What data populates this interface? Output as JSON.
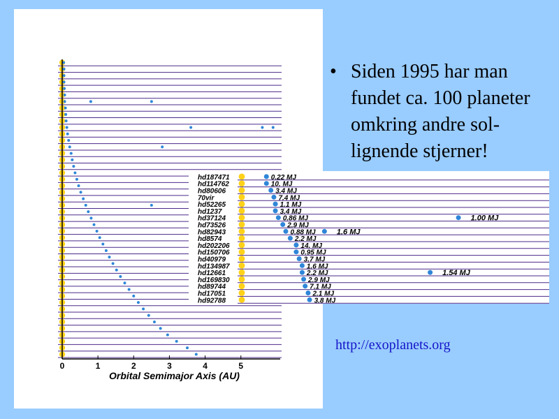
{
  "slide": {
    "bullet": "Siden 1995 har man fundet ca. 100 planeter omkring andre sol-lignende stjerner!",
    "link": "http://exoplanets.org"
  },
  "chart_data": [
    {
      "type": "scatter",
      "xlabel": "Orbital Semimajor Axis  (AU)",
      "xlim": [
        0,
        6.1
      ],
      "xticks": [
        0,
        1,
        2,
        3,
        4,
        5
      ],
      "x": [
        0.04,
        0.05,
        0.05,
        0.05,
        0.06,
        0.07,
        0.07,
        0.09,
        0.1,
        0.11,
        0.13,
        0.15,
        0.18,
        0.21,
        0.25,
        0.28,
        0.32,
        0.36,
        0.41,
        0.46,
        0.52,
        0.59,
        0.66,
        0.73,
        0.81,
        0.89,
        0.97,
        1.05,
        1.14,
        1.23,
        1.32,
        1.42,
        1.52,
        1.63,
        1.75,
        1.87,
        2.0,
        2.13,
        2.27,
        2.42,
        2.58,
        2.75,
        2.95,
        3.2,
        3.5,
        3.75
      ],
      "outer": {
        "rows": [
          6,
          6,
          10,
          10,
          10,
          13,
          22
        ],
        "x": [
          0.8,
          2.5,
          3.6,
          5.6,
          5.9,
          2.8,
          2.5
        ]
      },
      "color": "#2f86d8"
    },
    {
      "type": "scatter",
      "xlim": [
        0,
        2
      ],
      "categories": [
        "hd187471",
        "hd114762",
        "hd80606",
        "70vir",
        "hd52265",
        "hd1237",
        "hd37124",
        "hd73526",
        "hd82943",
        "hd8574",
        "hd202206",
        "hd150706",
        "hd40979",
        "hd134987",
        "hd12661",
        "hd169830",
        "hd89744",
        "hd17051",
        "hd92788"
      ],
      "x": [
        0.1,
        0.1,
        0.13,
        0.15,
        0.16,
        0.16,
        0.18,
        0.21,
        0.23,
        0.26,
        0.3,
        0.3,
        0.32,
        0.34,
        0.34,
        0.35,
        0.36,
        0.38,
        0.39
      ],
      "labels": [
        "0.22 MJ",
        "10. MJ",
        "3.4 MJ",
        "7.4 MJ",
        "1.1 MJ",
        "3.4 MJ",
        "0.86 MJ",
        "2.9 MJ",
        "0.88 MJ",
        "2.2 MJ",
        "14. MJ",
        "0.95 MJ",
        "3.7 MJ",
        "1.6 MJ",
        "2.2 MJ",
        "2.9 MJ",
        "7.1 MJ",
        "2.1 MJ",
        "3.8 MJ"
      ],
      "outer": {
        "rows": [
          6,
          8,
          14
        ],
        "x": [
          1.39,
          0.49,
          1.2
        ],
        "labels": [
          "1.00 MJ",
          "1.6 MJ",
          "1.54 MJ"
        ]
      },
      "color": "#2f86d8"
    }
  ]
}
